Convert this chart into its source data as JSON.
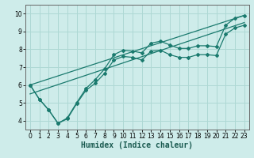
{
  "xlabel": "Humidex (Indice chaleur)",
  "bg_color": "#ceecea",
  "grid_color": "#aed8d4",
  "line_color": "#1a7a6e",
  "xlim": [
    -0.5,
    23.5
  ],
  "ylim": [
    3.5,
    10.5
  ],
  "xticks": [
    0,
    1,
    2,
    3,
    4,
    5,
    6,
    7,
    8,
    9,
    10,
    11,
    12,
    13,
    14,
    15,
    16,
    17,
    18,
    19,
    20,
    21,
    22,
    23
  ],
  "yticks": [
    4,
    5,
    6,
    7,
    8,
    9,
    10
  ],
  "series1_x": [
    0,
    1,
    2,
    3,
    4,
    5,
    6,
    7,
    8,
    9,
    10,
    11,
    12,
    13,
    14,
    15,
    16,
    17,
    18,
    19,
    20,
    21,
    22,
    23
  ],
  "series1_y": [
    6.0,
    5.2,
    4.6,
    3.85,
    4.15,
    5.0,
    5.8,
    6.3,
    6.9,
    7.7,
    7.95,
    7.9,
    7.8,
    8.35,
    8.45,
    8.25,
    8.05,
    8.05,
    8.2,
    8.2,
    8.15,
    9.35,
    9.75,
    9.9
  ],
  "series2_x": [
    0,
    1,
    2,
    3,
    4,
    5,
    6,
    7,
    8,
    9,
    10,
    11,
    12,
    13,
    14,
    15,
    16,
    17,
    18,
    19,
    20,
    21,
    22,
    23
  ],
  "series2_y": [
    6.0,
    5.2,
    4.6,
    3.85,
    4.1,
    4.95,
    5.7,
    6.1,
    6.65,
    7.4,
    7.6,
    7.55,
    7.4,
    7.9,
    7.95,
    7.7,
    7.55,
    7.55,
    7.7,
    7.7,
    7.65,
    8.85,
    9.2,
    9.35
  ],
  "series3_x": [
    0,
    23
  ],
  "series3_y": [
    6.0,
    9.9
  ],
  "series4_x": [
    0,
    23
  ],
  "series4_y": [
    5.5,
    9.5
  ],
  "tick_fontsize": 5.5,
  "xlabel_fontsize": 7
}
